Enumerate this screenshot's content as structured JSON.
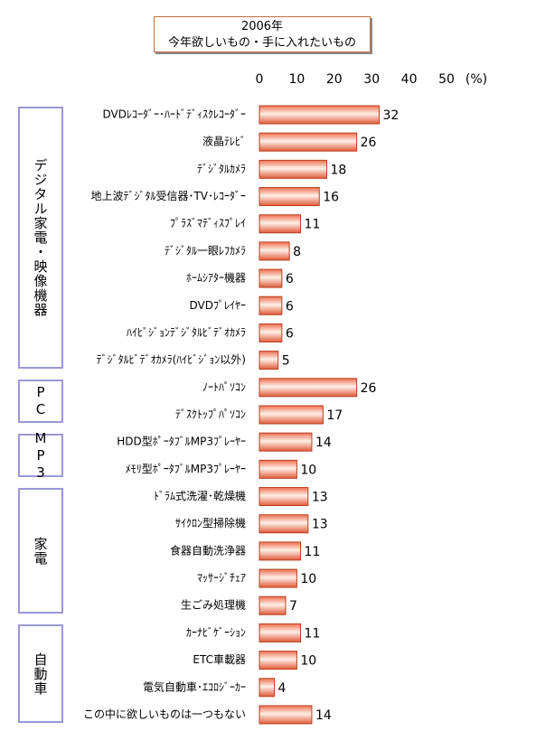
{
  "chart_data": {
    "type": "hbar",
    "title": "2006年",
    "subtitle": "今年欲しいもの・手に入れたいもの",
    "unit_label": "(%)",
    "categories": [
      "DVDﾚｺｰﾀﾞｰ･ﾊｰﾄﾞﾃﾞｨｽｸﾚｺｰﾀﾞｰ",
      "液晶ﾃﾚﾋﾞ",
      "ﾃﾞｼﾞﾀﾙｶﾒﾗ",
      "地上波ﾃﾞｼﾞﾀﾙ受信器･TV･ﾚｺｰﾀﾞｰ",
      "ﾌﾟﾗｽﾞﾏﾃﾞｨｽﾌﾟﾚｲ",
      "ﾃﾞｼﾞﾀﾙ一眼ﾚﾌｶﾒﾗ",
      "ﾎｰﾑｼｱﾀｰ機器",
      "DVDﾌﾟﾚｲﾔｰ",
      "ﾊｲﾋﾞｼﾞｮﾝﾃﾞｼﾞﾀﾙﾋﾞﾃﾞｵｶﾒﾗ",
      "ﾃﾞｼﾞﾀﾙﾋﾞﾃﾞｵｶﾒﾗ(ﾊｲﾋﾞｼﾞｮﾝ以外)",
      "ﾉｰﾄﾊﾟｿｺﾝ",
      "ﾃﾞｽｸﾄｯﾌﾟﾊﾟｿｺﾝ",
      "HDD型ﾎﾟｰﾀﾌﾞﾙMP3ﾌﾟﾚｰﾔｰ",
      "ﾒﾓﾘ型ﾎﾟｰﾀﾌﾞﾙMP3ﾌﾟﾚｰﾔｰ",
      "ﾄﾞﾗﾑ式洗濯･乾燥機",
      "ｻｲｸﾛﾝ型掃除機",
      "食器自動洗浄器",
      "ﾏｯｻｰｼﾞﾁｪｱ",
      "生ごみ処理機",
      "ｶｰﾅﾋﾞｹﾞｰｼｮﾝ",
      "ETC車載器",
      "電気自動車･ｴｺﾛｼﾞｰｶｰ",
      "この中に欲しいものは一つもない"
    ],
    "values": [
      32,
      26,
      18,
      16,
      11,
      8,
      6,
      6,
      6,
      5,
      26,
      17,
      14,
      10,
      13,
      13,
      11,
      10,
      7,
      11,
      10,
      4,
      14
    ],
    "groups": [
      "デジタル家電・映像機器",
      "PC",
      "MP3",
      "家電",
      "自動車"
    ],
    "color": "#f07050",
    "xlim": [
      0,
      50
    ],
    "xticks": [
      0,
      10,
      20,
      30,
      40,
      50
    ]
  }
}
